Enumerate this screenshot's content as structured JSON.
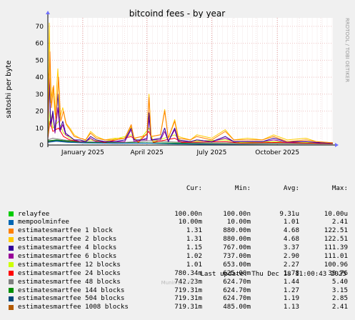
{
  "chart_data": {
    "type": "line",
    "title": "bitcoind fees - by year",
    "ylabel": "satoshi per byte",
    "ylim": [
      0,
      75
    ],
    "yticks": [
      0,
      10,
      20,
      30,
      40,
      50,
      60,
      70
    ],
    "xlim": [
      "2024-11-13",
      "2025-12-18"
    ],
    "xticks": [
      {
        "date": "2025-01-01",
        "label": "January 2025"
      },
      {
        "date": "2025-04-01",
        "label": "April 2025"
      },
      {
        "date": "2025-07-01",
        "label": "July 2025"
      },
      {
        "date": "2025-10-01",
        "label": "October 2025"
      }
    ],
    "grid": true,
    "legend_position": "bottom",
    "side_label": "RRDTOOL / TOBI OETIKER",
    "columns": [
      "Cur:",
      "Min:",
      "Avg:",
      "Max:"
    ],
    "series": [
      {
        "name": "relayfee",
        "color": "#00cc00",
        "cur": "100.00n",
        "min": "100.00n",
        "avg": "9.31u",
        "max": "10.00u",
        "points": [
          [
            "2024-11-13",
            0.01
          ],
          [
            "2025-12-18",
            0.01
          ]
        ]
      },
      {
        "name": "mempoolminfee",
        "color": "#0066b3",
        "cur": "10.00m",
        "min": "10.00m",
        "avg": "1.01",
        "max": "2.41",
        "points": [
          [
            "2024-11-13",
            1.5
          ],
          [
            "2024-11-25",
            2.2
          ],
          [
            "2024-12-10",
            1.6
          ],
          [
            "2025-01-05",
            1.2
          ],
          [
            "2025-02-15",
            1.0
          ],
          [
            "2025-04-01",
            1.1
          ],
          [
            "2025-05-15",
            0.6
          ],
          [
            "2025-07-01",
            0.3
          ],
          [
            "2025-09-01",
            0.1
          ],
          [
            "2025-12-18",
            0.01
          ]
        ]
      },
      {
        "name": "estimatesmartfee 1 block",
        "color": "#ff8000",
        "cur": "1.31",
        "min": "880.00m",
        "avg": "4.68",
        "max": "122.51",
        "points": [
          [
            "2024-11-13",
            10
          ],
          [
            "2024-11-16",
            55
          ],
          [
            "2024-11-18",
            22
          ],
          [
            "2024-11-21",
            35
          ],
          [
            "2024-11-24",
            15
          ],
          [
            "2024-11-28",
            40
          ],
          [
            "2024-12-01",
            14
          ],
          [
            "2024-12-05",
            20
          ],
          [
            "2024-12-09",
            12
          ],
          [
            "2024-12-14",
            9
          ],
          [
            "2024-12-20",
            5
          ],
          [
            "2024-12-28",
            4
          ],
          [
            "2025-01-05",
            3
          ],
          [
            "2025-01-12",
            7
          ],
          [
            "2025-01-20",
            4
          ],
          [
            "2025-02-01",
            3
          ],
          [
            "2025-02-15",
            3
          ],
          [
            "2025-03-01",
            4
          ],
          [
            "2025-03-10",
            12
          ],
          [
            "2025-03-14",
            4
          ],
          [
            "2025-03-25",
            5
          ],
          [
            "2025-04-01",
            6
          ],
          [
            "2025-04-04",
            28
          ],
          [
            "2025-04-07",
            5
          ],
          [
            "2025-04-20",
            6
          ],
          [
            "2025-04-26",
            20
          ],
          [
            "2025-05-01",
            4
          ],
          [
            "2025-05-10",
            14
          ],
          [
            "2025-05-15",
            4
          ],
          [
            "2025-06-01",
            3
          ],
          [
            "2025-06-10",
            5
          ],
          [
            "2025-07-01",
            3
          ],
          [
            "2025-07-20",
            8
          ],
          [
            "2025-08-01",
            3
          ],
          [
            "2025-08-20",
            3
          ],
          [
            "2025-09-10",
            3
          ],
          [
            "2025-09-26",
            5
          ],
          [
            "2025-10-15",
            2
          ],
          [
            "2025-11-10",
            3
          ],
          [
            "2025-11-25",
            2
          ],
          [
            "2025-12-18",
            1.3
          ]
        ]
      },
      {
        "name": "estimatesmartfee 2 blocks",
        "color": "#ffcc00",
        "cur": "1.31",
        "min": "880.00m",
        "avg": "4.68",
        "max": "122.51",
        "points": [
          [
            "2024-11-13",
            12
          ],
          [
            "2024-11-15",
            72
          ],
          [
            "2024-11-17",
            25
          ],
          [
            "2024-11-20",
            34
          ],
          [
            "2024-11-23",
            18
          ],
          [
            "2024-11-27",
            45
          ],
          [
            "2024-11-30",
            16
          ],
          [
            "2024-12-04",
            22
          ],
          [
            "2024-12-08",
            13
          ],
          [
            "2024-12-14",
            10
          ],
          [
            "2024-12-20",
            6
          ],
          [
            "2024-12-28",
            4
          ],
          [
            "2025-01-05",
            3
          ],
          [
            "2025-01-12",
            8
          ],
          [
            "2025-01-20",
            5
          ],
          [
            "2025-02-01",
            3
          ],
          [
            "2025-02-15",
            4
          ],
          [
            "2025-03-01",
            4
          ],
          [
            "2025-03-10",
            11
          ],
          [
            "2025-03-14",
            4
          ],
          [
            "2025-03-25",
            5
          ],
          [
            "2025-04-01",
            6
          ],
          [
            "2025-04-04",
            30
          ],
          [
            "2025-04-07",
            5
          ],
          [
            "2025-04-20",
            6
          ],
          [
            "2025-04-26",
            21
          ],
          [
            "2025-05-01",
            4
          ],
          [
            "2025-05-10",
            15
          ],
          [
            "2025-05-15",
            5
          ],
          [
            "2025-06-01",
            3
          ],
          [
            "2025-06-10",
            6
          ],
          [
            "2025-07-01",
            4
          ],
          [
            "2025-07-20",
            9
          ],
          [
            "2025-08-01",
            3
          ],
          [
            "2025-08-20",
            4
          ],
          [
            "2025-09-10",
            3
          ],
          [
            "2025-09-26",
            6
          ],
          [
            "2025-10-15",
            3
          ],
          [
            "2025-11-10",
            4
          ],
          [
            "2025-11-25",
            2
          ],
          [
            "2025-12-18",
            1.3
          ]
        ]
      },
      {
        "name": "estimatesmartfee 4 blocks",
        "color": "#330099",
        "cur": "1.15",
        "min": "767.00m",
        "avg": "3.37",
        "max": "111.39",
        "points": [
          [
            "2024-11-13",
            8
          ],
          [
            "2024-11-15",
            36
          ],
          [
            "2024-11-17",
            12
          ],
          [
            "2024-11-20",
            20
          ],
          [
            "2024-11-23",
            8
          ],
          [
            "2024-11-27",
            30
          ],
          [
            "2024-11-30",
            9
          ],
          [
            "2024-12-04",
            14
          ],
          [
            "2024-12-08",
            7
          ],
          [
            "2024-12-14",
            5
          ],
          [
            "2024-12-20",
            3
          ],
          [
            "2024-12-28",
            3
          ],
          [
            "2025-01-05",
            2
          ],
          [
            "2025-01-12",
            5
          ],
          [
            "2025-01-20",
            3
          ],
          [
            "2025-02-01",
            2
          ],
          [
            "2025-02-15",
            2
          ],
          [
            "2025-03-01",
            3
          ],
          [
            "2025-03-10",
            10
          ],
          [
            "2025-03-14",
            3
          ],
          [
            "2025-03-25",
            3
          ],
          [
            "2025-04-01",
            4
          ],
          [
            "2025-04-04",
            19
          ],
          [
            "2025-04-07",
            3
          ],
          [
            "2025-04-20",
            4
          ],
          [
            "2025-04-26",
            10
          ],
          [
            "2025-05-01",
            2
          ],
          [
            "2025-05-10",
            10
          ],
          [
            "2025-05-15",
            3
          ],
          [
            "2025-06-01",
            2
          ],
          [
            "2025-06-10",
            3
          ],
          [
            "2025-07-01",
            2
          ],
          [
            "2025-07-20",
            5
          ],
          [
            "2025-08-01",
            2
          ],
          [
            "2025-08-20",
            2
          ],
          [
            "2025-09-10",
            2
          ],
          [
            "2025-09-26",
            4
          ],
          [
            "2025-10-15",
            2
          ],
          [
            "2025-11-10",
            2
          ],
          [
            "2025-11-25",
            1.5
          ],
          [
            "2025-12-18",
            1.15
          ]
        ]
      },
      {
        "name": "estimatesmartfee 6 blocks",
        "color": "#990099",
        "cur": "1.02",
        "min": "737.00m",
        "avg": "2.90",
        "max": "111.01",
        "points": [
          [
            "2024-11-13",
            7
          ],
          [
            "2024-11-15",
            42
          ],
          [
            "2024-11-17",
            11
          ],
          [
            "2024-11-20",
            18
          ],
          [
            "2024-11-23",
            7
          ],
          [
            "2024-11-27",
            22
          ],
          [
            "2024-11-30",
            8
          ],
          [
            "2024-12-04",
            12
          ],
          [
            "2024-12-08",
            6
          ],
          [
            "2024-12-14",
            5
          ],
          [
            "2024-12-20",
            3
          ],
          [
            "2024-12-28",
            2
          ],
          [
            "2025-01-05",
            2
          ],
          [
            "2025-01-12",
            4
          ],
          [
            "2025-01-20",
            2
          ],
          [
            "2025-02-01",
            2
          ],
          [
            "2025-02-15",
            2
          ],
          [
            "2025-03-01",
            2
          ],
          [
            "2025-03-10",
            9
          ],
          [
            "2025-03-14",
            2
          ],
          [
            "2025-03-25",
            3
          ],
          [
            "2025-04-01",
            3
          ],
          [
            "2025-04-04",
            16
          ],
          [
            "2025-04-07",
            3
          ],
          [
            "2025-04-20",
            3
          ],
          [
            "2025-04-26",
            8
          ],
          [
            "2025-05-01",
            2
          ],
          [
            "2025-05-10",
            9
          ],
          [
            "2025-05-15",
            2
          ],
          [
            "2025-06-01",
            2
          ],
          [
            "2025-06-10",
            3
          ],
          [
            "2025-07-01",
            2
          ],
          [
            "2025-07-20",
            4
          ],
          [
            "2025-08-01",
            2
          ],
          [
            "2025-08-20",
            2
          ],
          [
            "2025-09-10",
            2
          ],
          [
            "2025-09-26",
            3
          ],
          [
            "2025-10-15",
            1.5
          ],
          [
            "2025-11-10",
            2
          ],
          [
            "2025-11-25",
            1.3
          ],
          [
            "2025-12-18",
            1.02
          ]
        ]
      },
      {
        "name": "estimatesmartfee 12 blocks",
        "color": "#ccff00",
        "cur": "1.01",
        "min": "653.00m",
        "avg": "2.27",
        "max": "100.96",
        "points": [
          [
            "2024-11-13",
            5
          ],
          [
            "2024-11-16",
            20
          ],
          [
            "2024-11-20",
            10
          ],
          [
            "2024-11-28",
            14
          ],
          [
            "2024-12-05",
            7
          ],
          [
            "2024-12-14",
            4
          ],
          [
            "2024-12-28",
            2
          ],
          [
            "2025-01-12",
            3
          ],
          [
            "2025-02-01",
            2
          ],
          [
            "2025-03-10",
            6
          ],
          [
            "2025-03-20",
            2
          ],
          [
            "2025-04-04",
            10
          ],
          [
            "2025-04-10",
            2
          ],
          [
            "2025-05-10",
            6
          ],
          [
            "2025-05-20",
            2
          ],
          [
            "2025-07-20",
            3
          ],
          [
            "2025-08-10",
            1.5
          ],
          [
            "2025-09-26",
            2
          ],
          [
            "2025-11-10",
            1.5
          ],
          [
            "2025-12-18",
            1.01
          ]
        ]
      },
      {
        "name": "estimatesmartfee 24 blocks",
        "color": "#ff0000",
        "cur": "780.34m",
        "min": "625.00m",
        "avg": "1.78",
        "max": "39.76",
        "points": [
          [
            "2024-11-13",
            4
          ],
          [
            "2024-11-16",
            14
          ],
          [
            "2024-11-20",
            8
          ],
          [
            "2024-11-28",
            10
          ],
          [
            "2024-12-05",
            5
          ],
          [
            "2024-12-14",
            3
          ],
          [
            "2024-12-28",
            2
          ],
          [
            "2025-01-12",
            3
          ],
          [
            "2025-02-01",
            1.5
          ],
          [
            "2025-03-10",
            5
          ],
          [
            "2025-03-20",
            1.5
          ],
          [
            "2025-04-04",
            8
          ],
          [
            "2025-04-10",
            1.5
          ],
          [
            "2025-05-10",
            4
          ],
          [
            "2025-05-20",
            1.5
          ],
          [
            "2025-07-20",
            2
          ],
          [
            "2025-08-10",
            1.2
          ],
          [
            "2025-09-26",
            1.5
          ],
          [
            "2025-11-10",
            1.2
          ],
          [
            "2025-12-18",
            0.78
          ]
        ]
      },
      {
        "name": "estimatesmartfee 48 blocks",
        "color": "#808080",
        "cur": "742.23m",
        "min": "624.70m",
        "avg": "1.44",
        "max": "5.40",
        "points": [
          [
            "2024-11-13",
            3
          ],
          [
            "2024-11-20",
            4
          ],
          [
            "2024-12-05",
            3
          ],
          [
            "2025-01-01",
            2
          ],
          [
            "2025-03-01",
            1.5
          ],
          [
            "2025-04-04",
            2.5
          ],
          [
            "2025-06-01",
            1.3
          ],
          [
            "2025-09-01",
            1.1
          ],
          [
            "2025-12-18",
            0.74
          ]
        ]
      },
      {
        "name": "estimatesmartfee 144 blocks",
        "color": "#008f00",
        "cur": "719.31m",
        "min": "624.70m",
        "avg": "1.27",
        "max": "3.15",
        "points": [
          [
            "2024-11-13",
            2.5
          ],
          [
            "2024-11-25",
            3
          ],
          [
            "2024-12-15",
            2.2
          ],
          [
            "2025-01-15",
            1.6
          ],
          [
            "2025-03-15",
            1.3
          ],
          [
            "2025-06-01",
            1.1
          ],
          [
            "2025-09-01",
            1.0
          ],
          [
            "2025-12-18",
            0.72
          ]
        ]
      },
      {
        "name": "estimatesmartfee 504 blocks",
        "color": "#00487d",
        "cur": "719.31m",
        "min": "624.70m",
        "avg": "1.19",
        "max": "2.85",
        "points": [
          [
            "2024-11-13",
            2.2
          ],
          [
            "2024-11-25",
            2.6
          ],
          [
            "2024-12-15",
            2.0
          ],
          [
            "2025-01-15",
            1.5
          ],
          [
            "2025-03-15",
            1.2
          ],
          [
            "2025-06-01",
            1.0
          ],
          [
            "2025-09-01",
            0.9
          ],
          [
            "2025-12-18",
            0.72
          ]
        ]
      },
      {
        "name": "estimatesmartfee 1008 blocks",
        "color": "#b35a00",
        "cur": "719.31m",
        "min": "485.00m",
        "avg": "1.13",
        "max": "2.41",
        "points": [
          [
            "2024-11-13",
            2.0
          ],
          [
            "2024-11-25",
            2.3
          ],
          [
            "2024-12-15",
            1.8
          ],
          [
            "2025-01-15",
            1.4
          ],
          [
            "2025-03-15",
            1.1
          ],
          [
            "2025-06-01",
            1.0
          ],
          [
            "2025-09-01",
            0.8
          ],
          [
            "2025-12-18",
            0.72
          ]
        ]
      }
    ]
  },
  "footer": {
    "last_update": "Last update: Thu Dec 18 11:00:43 2025",
    "munin": "Munin 2.0.76"
  }
}
